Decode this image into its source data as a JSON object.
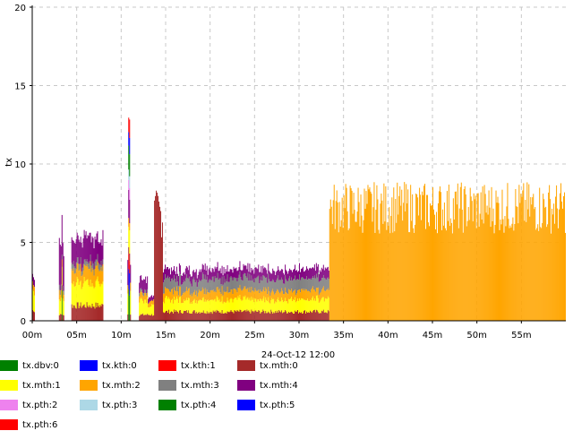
{
  "chart_data": {
    "type": "bar",
    "stacked": true,
    "ylabel": "tx",
    "xlabel": "24-Oct-12 12:00",
    "xlim": [
      0,
      60
    ],
    "ylim": [
      0,
      20
    ],
    "xticks": [
      0,
      5,
      10,
      15,
      20,
      25,
      30,
      35,
      40,
      45,
      50,
      55
    ],
    "xtick_labels": [
      "00m",
      "05m",
      "10m",
      "15m",
      "20m",
      "25m",
      "30m",
      "35m",
      "40m",
      "45m",
      "50m",
      "55m"
    ],
    "yticks": [
      0,
      5,
      10,
      15,
      20
    ],
    "ytick_labels": [
      "0",
      "5",
      "10",
      "15",
      "20"
    ],
    "grid": true,
    "legend_position": "bottom",
    "series": [
      {
        "name": "tx.dbv:0",
        "color": "#008000",
        "segments": [
          {
            "x": [
              3.3,
              3.4
            ],
            "y": 2.0
          },
          {
            "x": [
              10.8,
              11.0
            ],
            "y": 2.0
          }
        ]
      },
      {
        "name": "tx.kth:0",
        "color": "#0000ff",
        "segments": [
          {
            "x": [
              10.8,
              11.0
            ],
            "y": 1.5
          }
        ]
      },
      {
        "name": "tx.kth:1",
        "color": "#ff0000",
        "segments": [
          {
            "x": [
              10.8,
              11.0
            ],
            "y": 1.0
          }
        ]
      },
      {
        "name": "tx.mth:0",
        "color": "#a52a2a",
        "segments": [
          {
            "x": [
              0.0,
              0.3
            ],
            "y": 0.6
          },
          {
            "x": [
              3.0,
              3.6
            ],
            "y": 0.4
          },
          {
            "x": [
              4.4,
              8.0
            ],
            "y": 1.0
          },
          {
            "x": [
              10.7,
              11.1
            ],
            "y": 0.5
          },
          {
            "x": [
              12.0,
              13.0
            ],
            "y": 0.4
          },
          {
            "x": [
              13.0,
              13.7
            ],
            "y": 0.4
          },
          {
            "x": [
              13.7,
              14.7
            ],
            "y": 7.0
          },
          {
            "x": [
              14.7,
              33.4
            ],
            "y": 0.6
          }
        ]
      },
      {
        "name": "tx.mth:1",
        "color": "#ffff00",
        "segments": [
          {
            "x": [
              0.0,
              0.3
            ],
            "y": 1.2
          },
          {
            "x": [
              3.0,
              3.6
            ],
            "y": 1.0
          },
          {
            "x": [
              4.4,
              8.0
            ],
            "y": 1.5
          },
          {
            "x": [
              10.7,
              11.1
            ],
            "y": 1.5
          },
          {
            "x": [
              12.0,
              13.0
            ],
            "y": 1.0
          },
          {
            "x": [
              13.0,
              13.7
            ],
            "y": 0.6
          },
          {
            "x": [
              14.7,
              33.4
            ],
            "y": 0.8
          }
        ]
      },
      {
        "name": "tx.mth:2",
        "color": "#ffa500",
        "segments": [
          {
            "x": [
              0.0,
              0.3
            ],
            "y": 0.5
          },
          {
            "x": [
              3.0,
              3.6
            ],
            "y": 0.5
          },
          {
            "x": [
              4.4,
              8.0
            ],
            "y": 1.0
          },
          {
            "x": [
              10.7,
              11.1
            ],
            "y": 0.5
          },
          {
            "x": [
              12.0,
              13.0
            ],
            "y": 0.4
          },
          {
            "x": [
              13.0,
              13.7
            ],
            "y": 0.3
          },
          {
            "x": [
              14.7,
              33.4
            ],
            "y": 0.6
          },
          {
            "x": [
              33.4,
              60.0
            ],
            "y": 7.4
          }
        ]
      },
      {
        "name": "tx.mth:3",
        "color": "#808080",
        "segments": [
          {
            "x": [
              3.0,
              3.6
            ],
            "y": 0.3
          },
          {
            "x": [
              4.4,
              8.0
            ],
            "y": 0.4
          },
          {
            "x": [
              12.0,
              13.0
            ],
            "y": 0.2
          },
          {
            "x": [
              14.7,
              33.4
            ],
            "y": 0.8
          }
        ]
      },
      {
        "name": "tx.mth:4",
        "color": "#800080",
        "segments": [
          {
            "x": [
              0.0,
              0.3
            ],
            "y": 0.5
          },
          {
            "x": [
              3.0,
              3.6
            ],
            "y": 2.5
          },
          {
            "x": [
              4.4,
              8.0
            ],
            "y": 1.6
          },
          {
            "x": [
              10.7,
              11.1
            ],
            "y": 1.5
          },
          {
            "x": [
              12.0,
              13.0
            ],
            "y": 0.8
          },
          {
            "x": [
              13.0,
              13.7
            ],
            "y": 0.3
          },
          {
            "x": [
              14.7,
              33.4
            ],
            "y": 0.6
          }
        ]
      },
      {
        "name": "tx.pth:2",
        "color": "#ee82ee",
        "segments": [
          {
            "x": [
              10.8,
              11.0
            ],
            "y": 0.8
          }
        ]
      },
      {
        "name": "tx.pth:3",
        "color": "#add8e6",
        "segments": [
          {
            "x": [
              10.8,
              11.0
            ],
            "y": 0.8
          }
        ]
      },
      {
        "name": "tx.pth:4",
        "color": "#008000",
        "segments": [
          {
            "x": [
              10.8,
              11.0
            ],
            "y": 1.8
          }
        ]
      },
      {
        "name": "tx.pth:5",
        "color": "#0000ff",
        "segments": [
          {
            "x": [
              10.8,
              11.0
            ],
            "y": 1.0
          }
        ]
      },
      {
        "name": "tx.pth:6",
        "color": "#ff0000",
        "segments": [
          {
            "x": [
              10.8,
              11.0
            ],
            "y": 1.0
          }
        ]
      }
    ]
  }
}
